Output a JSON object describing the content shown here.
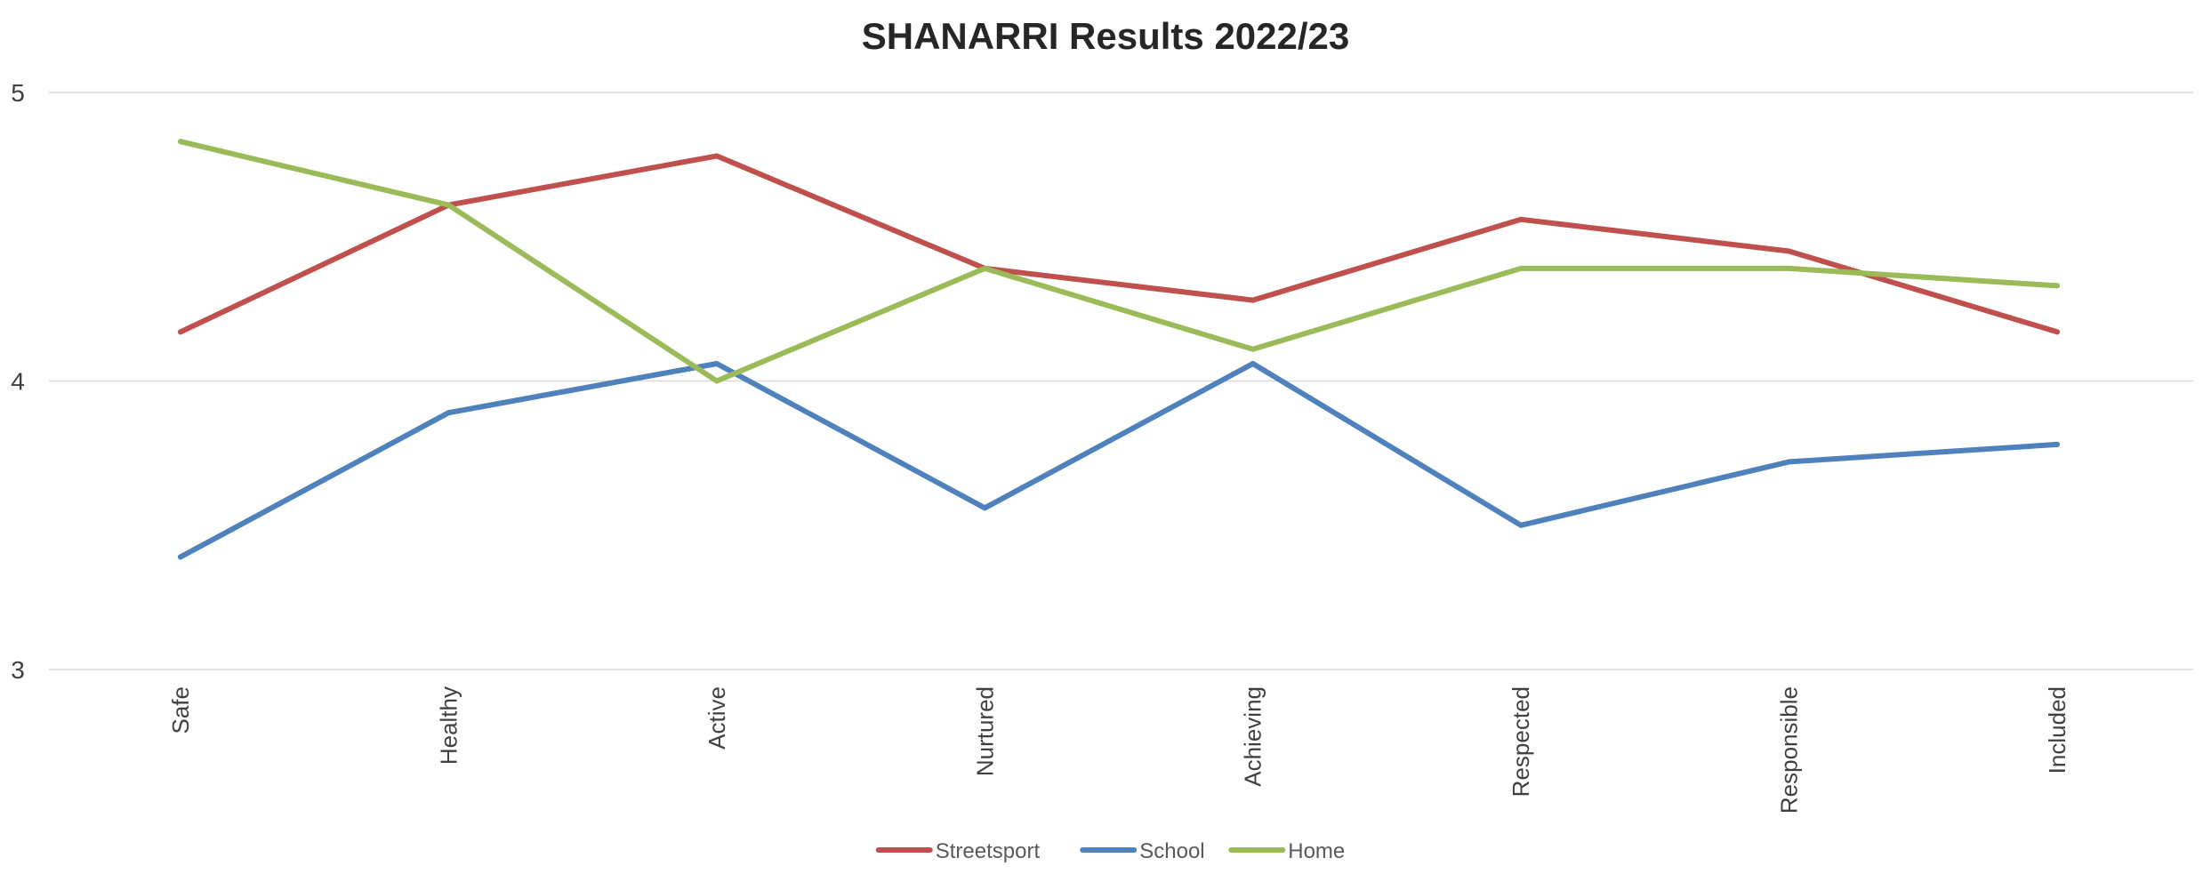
{
  "chart_data": {
    "type": "line",
    "title": "SHANARRI Results 2022/23",
    "xlabel": "",
    "ylabel": "",
    "categories": [
      "Safe",
      "Healthy",
      "Active",
      "Nurtured",
      "Achieving",
      "Respected",
      "Responsible",
      "Included"
    ],
    "ylim": [
      3,
      5
    ],
    "yticks": [
      "3",
      "4",
      "5"
    ],
    "grid": true,
    "legend_position": "bottom",
    "series": [
      {
        "name": "Streetsport",
        "color": "#c0504d",
        "values": [
          4.17,
          4.61,
          4.78,
          4.39,
          4.28,
          4.56,
          4.45,
          4.17
        ]
      },
      {
        "name": "School",
        "color": "#4f81bd",
        "values": [
          3.39,
          3.89,
          4.06,
          3.56,
          4.06,
          3.5,
          3.72,
          3.78
        ]
      },
      {
        "name": "Home",
        "color": "#9bbb59",
        "values": [
          4.83,
          4.61,
          4.0,
          4.39,
          4.11,
          4.39,
          4.39,
          4.33
        ]
      }
    ]
  }
}
